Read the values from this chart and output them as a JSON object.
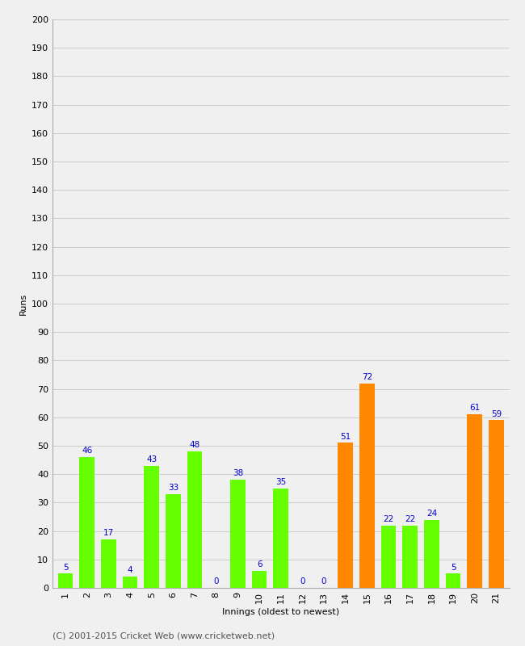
{
  "innings": [
    1,
    2,
    3,
    4,
    5,
    6,
    7,
    8,
    9,
    10,
    11,
    12,
    13,
    14,
    15,
    16,
    17,
    18,
    19,
    20,
    21
  ],
  "values": [
    5,
    46,
    17,
    4,
    43,
    33,
    48,
    0,
    38,
    6,
    35,
    0,
    0,
    51,
    72,
    22,
    22,
    24,
    5,
    61,
    59
  ],
  "colors": [
    "#66ff00",
    "#66ff00",
    "#66ff00",
    "#66ff00",
    "#66ff00",
    "#66ff00",
    "#66ff00",
    "#66ff00",
    "#66ff00",
    "#66ff00",
    "#66ff00",
    "#66ff00",
    "#66ff00",
    "#ff8800",
    "#ff8800",
    "#66ff00",
    "#66ff00",
    "#66ff00",
    "#66ff00",
    "#ff8800",
    "#ff8800"
  ],
  "xlabel": "Innings (oldest to newest)",
  "ylabel": "Runs",
  "ylim": [
    0,
    200
  ],
  "yticks": [
    0,
    10,
    20,
    30,
    40,
    50,
    60,
    70,
    80,
    90,
    100,
    110,
    120,
    130,
    140,
    150,
    160,
    170,
    180,
    190,
    200
  ],
  "label_color": "#0000cc",
  "footer": "(C) 2001-2015 Cricket Web (www.cricketweb.net)",
  "background_color": "#f0f0f0",
  "grid_color": "#cccccc",
  "label_fontsize": 8,
  "tick_fontsize": 8,
  "footer_fontsize": 8
}
